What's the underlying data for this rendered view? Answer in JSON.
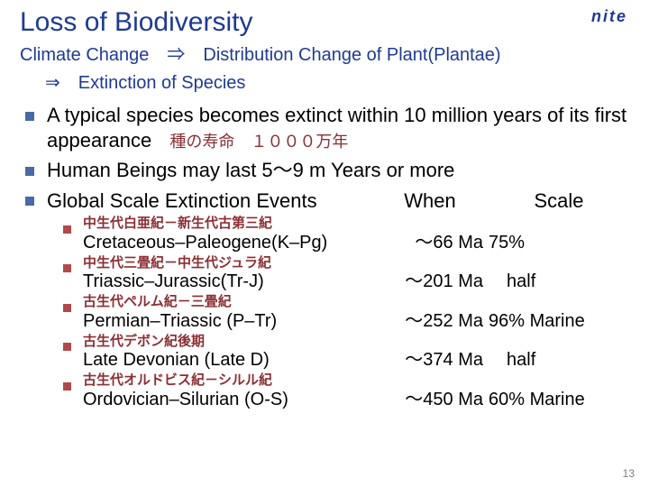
{
  "colors": {
    "title": "#1f3a93",
    "subtitle": "#1f3a93",
    "body": "#000000",
    "bullet_main": "#4a6aa5",
    "bullet_sub": "#b04a4a",
    "jp_label": "#8b2f33",
    "logo": "#1f3a93",
    "slidenum": "#808080",
    "background": "#ffffff"
  },
  "fonts": {
    "title_size": 30,
    "subtitle_size": 20,
    "body_size": 22,
    "body_size_sm": 21,
    "jp_inline_size": 18,
    "jp_label_size": 15,
    "ev_size": 20,
    "logo_size": 18,
    "slidenum_size": 12
  },
  "logo": "nite",
  "title": "Loss of Biodiversity",
  "subtitle_line1": "Climate Change　⇒　Distribution Change of Plant(Plantae)",
  "subtitle_line2": "⇒　Extinction of Species",
  "bullets": {
    "b1_text": "A typical species becomes extinct within 10 million years of its first appearance",
    "b1_jp": "種の寿命　１０００万年",
    "b2_text": "Human Beings may last 5～9 m Years or more",
    "b3_name": "Global Scale Extinction Events",
    "b3_when": "When",
    "b3_scale": "Scale"
  },
  "events": [
    {
      "jp": "中生代白亜紀－新生代古第三紀",
      "name": "Cretaceous–Paleogene(K–Pg)",
      "when": "～66 Ma",
      "scale": "75%"
    },
    {
      "jp": "中生代三畳紀－中生代ジュラ紀",
      "name": "Triassic–Jurassic(Tr-J)",
      "when": "～201 Ma",
      "scale": "　half"
    },
    {
      "jp": "古生代ペルム紀－三畳紀",
      "name": "Permian–Triassic (P–Tr)",
      "when": "～252 Ma",
      "scale": "96% Marine"
    },
    {
      "jp": "古生代デボン紀後期",
      "name": "Late Devonian (Late D)",
      "when": "～374 Ma",
      "scale": "　half"
    },
    {
      "jp": "古生代オルドビス紀－シルル紀",
      "name": "Ordovician–Silurian (O-S)",
      "when": "～450 Ma",
      "scale": "60% Marine"
    }
  ],
  "slidenum": "13"
}
